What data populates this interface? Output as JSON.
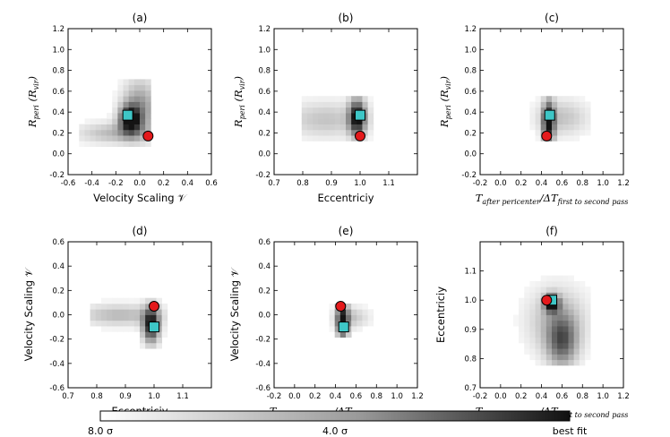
{
  "colors": {
    "marker_red": "#e41a1c",
    "marker_cyan": "#3ec6c6",
    "best": "#111111",
    "worst": "#ffffff"
  },
  "colorbar": {
    "left_label": "8.0 σ",
    "mid_label": "4.0 σ",
    "right_label": "best fit"
  },
  "chart_data": [
    {
      "type": "heatmap",
      "title": "(a)",
      "xlabel": "Velocity Scaling 𝒱",
      "ylabel": "R_peri (R_vir)",
      "ylabel_main": "R",
      "ylabel_sub": "peri",
      "ylabel_paren": " (R",
      "ylabel_sub2": "vir",
      "ylabel_end": ")",
      "xlim": [
        -0.6,
        0.6
      ],
      "ylim": [
        -0.2,
        1.2
      ],
      "xticks": [
        "-0.6",
        "-0.4",
        "-0.2",
        "0.0",
        "0.2",
        "0.4",
        "0.6"
      ],
      "yticks": [
        "-0.2",
        "0.0",
        "0.2",
        "0.4",
        "0.6",
        "0.8",
        "1.0",
        "1.2"
      ],
      "red_point": [
        0.07,
        0.17
      ],
      "cyan_point": [
        -0.1,
        0.37
      ],
      "blobs": [
        {
          "cx": -0.08,
          "cy": 0.33,
          "sx": 0.06,
          "sy": 0.09,
          "w": 1.0
        },
        {
          "cx": -0.2,
          "cy": 0.2,
          "sx": 0.22,
          "sy": 0.07,
          "w": 0.3
        },
        {
          "cx": 0.0,
          "cy": 0.45,
          "sx": 0.1,
          "sy": 0.18,
          "w": 0.45
        }
      ],
      "region": {
        "x": [
          -0.5,
          0.07
        ],
        "y": [
          0.05,
          0.72
        ]
      }
    },
    {
      "type": "heatmap",
      "title": "(b)",
      "xlabel": "Eccentriciy",
      "ylabel": "R_peri (R_vir)",
      "ylabel_main": "R",
      "ylabel_sub": "peri",
      "ylabel_paren": " (R",
      "ylabel_sub2": "vir",
      "ylabel_end": ")",
      "xlim": [
        0.7,
        1.2
      ],
      "ylim": [
        -0.2,
        1.2
      ],
      "xticks": [
        "0.7",
        "0.8",
        "0.9",
        "1.0",
        "1.1"
      ],
      "yticks": [
        "-0.2",
        "0.0",
        "0.2",
        "0.4",
        "0.6",
        "0.8",
        "1.0",
        "1.2"
      ],
      "red_point": [
        1.0,
        0.17
      ],
      "cyan_point": [
        1.0,
        0.37
      ],
      "blobs": [
        {
          "cx": 0.99,
          "cy": 0.35,
          "sx": 0.02,
          "sy": 0.12,
          "w": 1.0
        },
        {
          "cx": 0.88,
          "cy": 0.33,
          "sx": 0.1,
          "sy": 0.12,
          "w": 0.25
        }
      ],
      "region": {
        "x": [
          0.79,
          1.04
        ],
        "y": [
          0.12,
          0.55
        ]
      }
    },
    {
      "type": "heatmap",
      "title": "(c)",
      "xlabel": "T_after pericenter / ΔT_first to second pass",
      "ylabel": "R_peri (R_vir)",
      "ylabel_main": "R",
      "ylabel_sub": "peri",
      "ylabel_paren": " (R",
      "ylabel_sub2": "vir",
      "ylabel_end": ")",
      "xlim": [
        -0.2,
        1.2
      ],
      "ylim": [
        -0.2,
        1.2
      ],
      "xticks": [
        "-0.2",
        "0.0",
        "0.2",
        "0.4",
        "0.6",
        "0.8",
        "1.0",
        "1.2"
      ],
      "yticks": [
        "-0.2",
        "0.0",
        "0.2",
        "0.4",
        "0.6",
        "0.8",
        "1.0",
        "1.2"
      ],
      "red_point": [
        0.45,
        0.17
      ],
      "cyan_point": [
        0.48,
        0.37
      ],
      "blobs": [
        {
          "cx": 0.47,
          "cy": 0.3,
          "sx": 0.04,
          "sy": 0.14,
          "w": 1.0
        },
        {
          "cx": 0.6,
          "cy": 0.35,
          "sx": 0.18,
          "sy": 0.12,
          "w": 0.25
        }
      ],
      "region": {
        "x": [
          0.28,
          0.9
        ],
        "y": [
          0.1,
          0.55
        ]
      }
    },
    {
      "type": "heatmap",
      "title": "(d)",
      "xlabel": "Eccentriciy",
      "ylabel": "Velocity Scaling 𝒱",
      "xlim": [
        0.7,
        1.2
      ],
      "ylim": [
        -0.6,
        0.6
      ],
      "xticks": [
        "0.7",
        "0.8",
        "0.9",
        "1.0",
        "1.1"
      ],
      "yticks": [
        "-0.6",
        "-0.4",
        "-0.2",
        "0.0",
        "0.2",
        "0.4",
        "0.6"
      ],
      "red_point": [
        1.0,
        0.07
      ],
      "cyan_point": [
        1.0,
        -0.1
      ],
      "blobs": [
        {
          "cx": 0.99,
          "cy": -0.08,
          "sx": 0.02,
          "sy": 0.1,
          "w": 1.0
        },
        {
          "cx": 0.88,
          "cy": 0.0,
          "sx": 0.1,
          "sy": 0.06,
          "w": 0.3
        }
      ],
      "region": {
        "x": [
          0.78,
          1.04
        ],
        "y": [
          -0.28,
          0.13
        ]
      }
    },
    {
      "type": "heatmap",
      "title": "(e)",
      "xlabel": "T_after pericenter / ΔT_first to second pass",
      "ylabel": "Velocity Scaling 𝒱",
      "xlim": [
        -0.2,
        1.2
      ],
      "ylim": [
        -0.6,
        0.6
      ],
      "xticks": [
        "-0.2",
        "0.0",
        "0.2",
        "0.4",
        "0.6",
        "0.8",
        "1.0",
        "1.2"
      ],
      "yticks": [
        "-0.6",
        "-0.4",
        "-0.2",
        "0.0",
        "0.2",
        "0.4",
        "0.6"
      ],
      "red_point": [
        0.45,
        0.07
      ],
      "cyan_point": [
        0.48,
        -0.1
      ],
      "blobs": [
        {
          "cx": 0.47,
          "cy": -0.05,
          "sx": 0.04,
          "sy": 0.1,
          "w": 1.0
        },
        {
          "cx": 0.55,
          "cy": -0.02,
          "sx": 0.12,
          "sy": 0.06,
          "w": 0.25
        }
      ],
      "region": {
        "x": [
          0.33,
          0.85
        ],
        "y": [
          -0.2,
          0.1
        ]
      }
    },
    {
      "type": "heatmap",
      "title": "(f)",
      "xlabel": "T_after pericenter / ΔT_first to second pass",
      "ylabel": "Eccentriciy",
      "xlim": [
        -0.2,
        1.2
      ],
      "ylim": [
        0.7,
        1.2
      ],
      "xticks": [
        "-0.2",
        "0.0",
        "0.2",
        "0.4",
        "0.6",
        "0.8",
        "1.0",
        "1.2"
      ],
      "yticks": [
        "0.7",
        "0.8",
        "0.9",
        "1.0",
        "1.1"
      ],
      "red_point": [
        0.45,
        1.0
      ],
      "cyan_point": [
        0.5,
        1.0
      ],
      "blobs": [
        {
          "cx": 0.5,
          "cy": 0.99,
          "sx": 0.05,
          "sy": 0.02,
          "w": 1.0
        },
        {
          "cx": 0.6,
          "cy": 0.86,
          "sx": 0.1,
          "sy": 0.06,
          "w": 0.6
        },
        {
          "cx": 0.55,
          "cy": 0.93,
          "sx": 0.2,
          "sy": 0.08,
          "w": 0.3
        }
      ],
      "region": {
        "x": [
          0.1,
          0.88
        ],
        "y": [
          0.78,
          1.08
        ]
      }
    }
  ]
}
